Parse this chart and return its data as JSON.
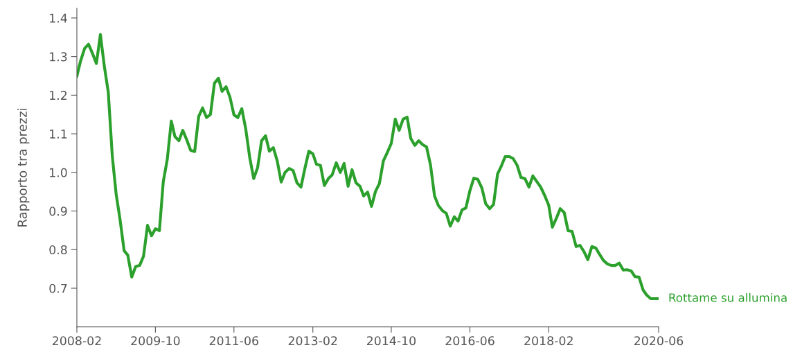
{
  "chart_data": {
    "type": "line",
    "ylabel": "Rapporto tra prezzi",
    "x": [
      "2008-02",
      "2008-03",
      "2008-04",
      "2008-05",
      "2008-06",
      "2008-07",
      "2008-08",
      "2008-09",
      "2008-10",
      "2008-11",
      "2008-12",
      "2009-01",
      "2009-02",
      "2009-03",
      "2009-04",
      "2009-05",
      "2009-06",
      "2009-07",
      "2009-08",
      "2009-09",
      "2009-10",
      "2009-11",
      "2009-12",
      "2010-01",
      "2010-02",
      "2010-03",
      "2010-04",
      "2010-05",
      "2010-06",
      "2010-07",
      "2010-08",
      "2010-09",
      "2010-10",
      "2010-11",
      "2010-12",
      "2011-01",
      "2011-02",
      "2011-03",
      "2011-04",
      "2011-05",
      "2011-06",
      "2011-07",
      "2011-08",
      "2011-09",
      "2011-10",
      "2011-11",
      "2011-12",
      "2012-01",
      "2012-02",
      "2012-03",
      "2012-04",
      "2012-05",
      "2012-06",
      "2012-07",
      "2012-08",
      "2012-09",
      "2012-10",
      "2012-11",
      "2012-12",
      "2013-01",
      "2013-02",
      "2013-03",
      "2013-04",
      "2013-05",
      "2013-06",
      "2013-07",
      "2013-08",
      "2013-09",
      "2013-10",
      "2013-11",
      "2013-12",
      "2014-01",
      "2014-02",
      "2014-03",
      "2014-04",
      "2014-05",
      "2014-06",
      "2014-07",
      "2014-08",
      "2014-09",
      "2014-10",
      "2014-11",
      "2014-12",
      "2015-01",
      "2015-02",
      "2015-03",
      "2015-04",
      "2015-05",
      "2015-06",
      "2015-07",
      "2015-08",
      "2015-09",
      "2015-10",
      "2015-11",
      "2015-12",
      "2016-01",
      "2016-02",
      "2016-03",
      "2016-04",
      "2016-05",
      "2016-06",
      "2016-07",
      "2016-08",
      "2016-09",
      "2016-10",
      "2016-11",
      "2016-12",
      "2017-01",
      "2017-02",
      "2017-03",
      "2017-04",
      "2017-05",
      "2017-06",
      "2017-07",
      "2017-08",
      "2017-09",
      "2017-10",
      "2017-11",
      "2017-12",
      "2018-01",
      "2018-02",
      "2018-03",
      "2018-04",
      "2018-05",
      "2018-06",
      "2018-07",
      "2018-08",
      "2018-09",
      "2018-10",
      "2018-11",
      "2018-12",
      "2019-01",
      "2019-02",
      "2019-03",
      "2019-04",
      "2019-05",
      "2019-06",
      "2019-07",
      "2019-08",
      "2019-09",
      "2019-10",
      "2019-11",
      "2019-12",
      "2020-01",
      "2020-02",
      "2020-03",
      "2020-04",
      "2020-05",
      "2020-06"
    ],
    "series": [
      {
        "name": "Rottame su allumina",
        "color": "#2ca02c",
        "values": [
          1.249,
          1.289,
          1.321,
          1.332,
          1.308,
          1.282,
          1.357,
          1.274,
          1.208,
          1.043,
          0.944,
          0.876,
          0.797,
          0.786,
          0.729,
          0.756,
          0.759,
          0.783,
          0.863,
          0.836,
          0.854,
          0.849,
          0.976,
          1.034,
          1.133,
          1.093,
          1.082,
          1.109,
          1.084,
          1.057,
          1.054,
          1.145,
          1.167,
          1.142,
          1.15,
          1.231,
          1.244,
          1.21,
          1.222,
          1.195,
          1.149,
          1.142,
          1.165,
          1.111,
          1.039,
          0.984,
          1.012,
          1.082,
          1.095,
          1.055,
          1.064,
          1.03,
          0.975,
          1.0,
          1.01,
          1.005,
          0.973,
          0.962,
          1.01,
          1.055,
          1.048,
          1.021,
          1.018,
          0.966,
          0.984,
          0.994,
          1.025,
          1.0,
          1.023,
          0.964,
          1.007,
          0.973,
          0.964,
          0.939,
          0.949,
          0.912,
          0.951,
          0.971,
          1.03,
          1.052,
          1.075,
          1.138,
          1.109,
          1.138,
          1.143,
          1.088,
          1.07,
          1.082,
          1.072,
          1.066,
          1.019,
          0.939,
          0.914,
          0.901,
          0.894,
          0.861,
          0.885,
          0.874,
          0.903,
          0.908,
          0.953,
          0.985,
          0.982,
          0.96,
          0.919,
          0.906,
          0.917,
          0.996,
          1.018,
          1.041,
          1.041,
          1.036,
          1.019,
          0.987,
          0.984,
          0.962,
          0.991,
          0.976,
          0.962,
          0.94,
          0.915,
          0.858,
          0.881,
          0.906,
          0.896,
          0.849,
          0.847,
          0.808,
          0.811,
          0.795,
          0.774,
          0.808,
          0.804,
          0.788,
          0.772,
          0.763,
          0.759,
          0.759,
          0.765,
          0.747,
          0.748,
          0.745,
          0.73,
          0.729,
          0.696,
          0.682,
          0.673,
          0.673,
          0.673
        ]
      }
    ],
    "xlim": [
      "2008-02",
      "2020-06"
    ],
    "xticks": [
      "2008-02",
      "2009-10",
      "2011-06",
      "2013-02",
      "2014-10",
      "2016-06",
      "2018-02",
      "2020-06"
    ],
    "ylim": [
      0.6,
      1.425
    ],
    "yticks": [
      0.7,
      0.8,
      0.9,
      {
        "value": 1,
        "label": "1.0"
      },
      1.1,
      1.2,
      1.3,
      1.4
    ],
    "grid": false,
    "legend": false
  }
}
